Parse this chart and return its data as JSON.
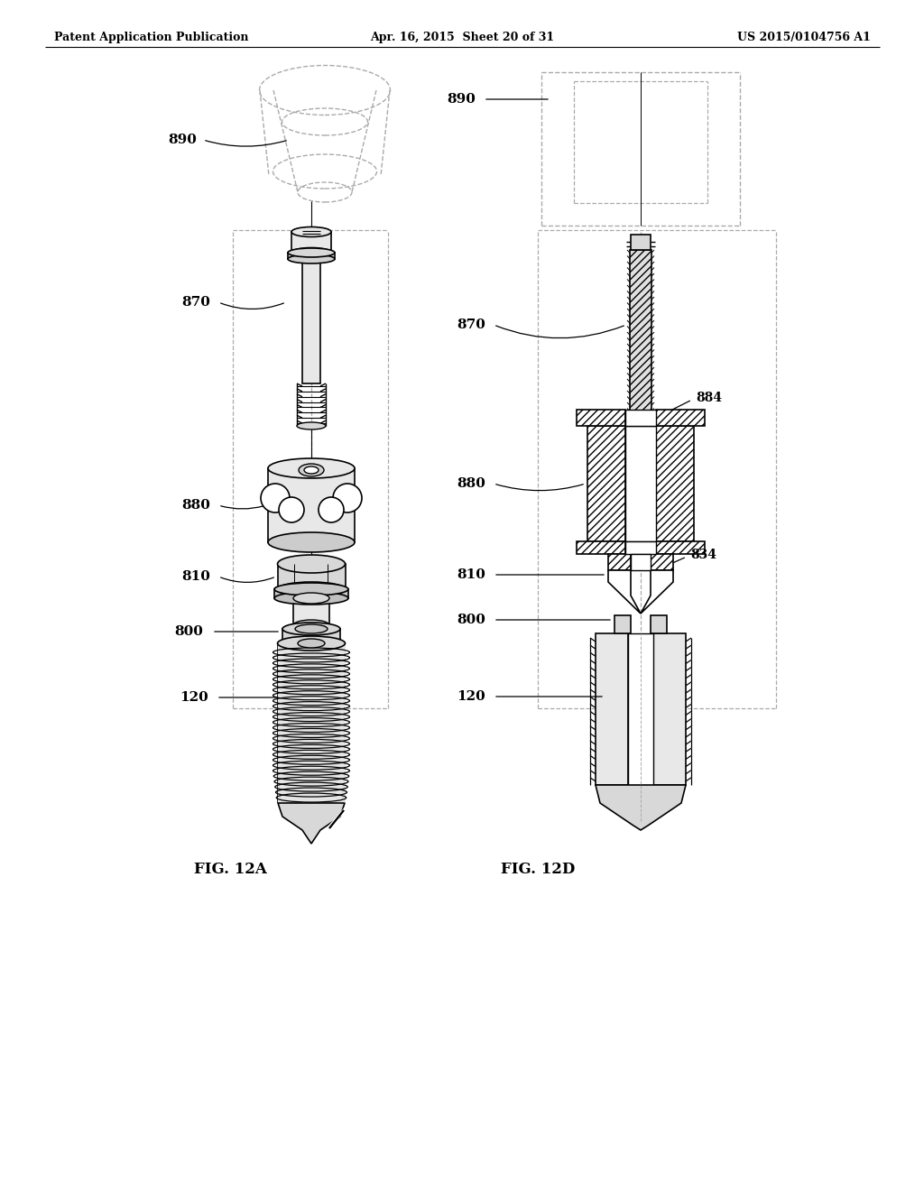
{
  "bg_color": "#ffffff",
  "header_left": "Patent Application Publication",
  "header_center": "Apr. 16, 2015  Sheet 20 of 31",
  "header_right": "US 2015/0104756 A1",
  "fig_left_label": "FIG. 12A",
  "fig_right_label": "FIG. 12D",
  "line_color": "#000000",
  "dashed_color": "#aaaaaa",
  "gray_light": "#e8e8e8",
  "gray_mid": "#cccccc",
  "gray_dark": "#aaaaaa"
}
